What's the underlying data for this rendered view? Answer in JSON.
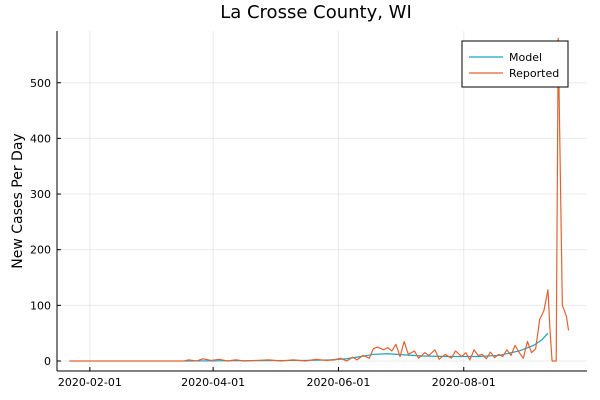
{
  "chart_data": {
    "type": "line",
    "title": "La Crosse County, WI",
    "xlabel": "",
    "ylabel": "New Cases Per Day",
    "x_axis_type": "date",
    "xlim": [
      "2020-01-16",
      "2020-09-30"
    ],
    "ylim": [
      -18,
      593
    ],
    "x_ticks": [
      "2020-02-01",
      "2020-04-01",
      "2020-06-01",
      "2020-08-01"
    ],
    "y_ticks": [
      0,
      100,
      200,
      300,
      400,
      500
    ],
    "grid": true,
    "legend": "top-right",
    "series": [
      {
        "name": "Model",
        "color": "#1aa3c4",
        "points": [
          [
            "2020-03-18",
            0
          ],
          [
            "2020-04-15",
            0.5
          ],
          [
            "2020-05-15",
            1
          ],
          [
            "2020-05-28",
            2
          ],
          [
            "2020-06-05",
            4
          ],
          [
            "2020-06-12",
            8
          ],
          [
            "2020-06-18",
            12
          ],
          [
            "2020-06-25",
            13
          ],
          [
            "2020-07-03",
            11
          ],
          [
            "2020-07-12",
            9
          ],
          [
            "2020-07-25",
            8
          ],
          [
            "2020-08-08",
            8
          ],
          [
            "2020-08-18",
            10
          ],
          [
            "2020-08-28",
            18
          ],
          [
            "2020-09-04",
            28
          ],
          [
            "2020-09-08",
            38
          ],
          [
            "2020-09-11",
            50
          ]
        ]
      },
      {
        "name": "Reported",
        "color": "#e2632f",
        "points": [
          [
            "2020-01-22",
            0
          ],
          [
            "2020-03-18",
            0
          ],
          [
            "2020-03-20",
            2
          ],
          [
            "2020-03-24",
            0
          ],
          [
            "2020-03-27",
            4
          ],
          [
            "2020-03-31",
            1
          ],
          [
            "2020-04-04",
            3
          ],
          [
            "2020-04-08",
            0
          ],
          [
            "2020-04-12",
            2
          ],
          [
            "2020-04-16",
            0
          ],
          [
            "2020-04-22",
            1
          ],
          [
            "2020-04-28",
            2
          ],
          [
            "2020-05-04",
            0
          ],
          [
            "2020-05-10",
            2
          ],
          [
            "2020-05-16",
            0
          ],
          [
            "2020-05-21",
            3
          ],
          [
            "2020-05-26",
            1
          ],
          [
            "2020-05-30",
            2
          ],
          [
            "2020-06-02",
            5
          ],
          [
            "2020-06-05",
            0
          ],
          [
            "2020-06-08",
            7
          ],
          [
            "2020-06-10",
            2
          ],
          [
            "2020-06-13",
            10
          ],
          [
            "2020-06-16",
            5
          ],
          [
            "2020-06-18",
            22
          ],
          [
            "2020-06-20",
            25
          ],
          [
            "2020-06-23",
            20
          ],
          [
            "2020-06-25",
            24
          ],
          [
            "2020-06-27",
            18
          ],
          [
            "2020-06-29",
            30
          ],
          [
            "2020-07-01",
            8
          ],
          [
            "2020-07-03",
            35
          ],
          [
            "2020-07-05",
            12
          ],
          [
            "2020-07-08",
            18
          ],
          [
            "2020-07-10",
            5
          ],
          [
            "2020-07-13",
            15
          ],
          [
            "2020-07-15",
            10
          ],
          [
            "2020-07-18",
            20
          ],
          [
            "2020-07-20",
            3
          ],
          [
            "2020-07-23",
            12
          ],
          [
            "2020-07-26",
            5
          ],
          [
            "2020-07-28",
            18
          ],
          [
            "2020-07-31",
            8
          ],
          [
            "2020-08-02",
            15
          ],
          [
            "2020-08-04",
            2
          ],
          [
            "2020-08-06",
            20
          ],
          [
            "2020-08-08",
            10
          ],
          [
            "2020-08-10",
            12
          ],
          [
            "2020-08-12",
            4
          ],
          [
            "2020-08-14",
            16
          ],
          [
            "2020-08-16",
            6
          ],
          [
            "2020-08-18",
            12
          ],
          [
            "2020-08-20",
            8
          ],
          [
            "2020-08-22",
            20
          ],
          [
            "2020-08-24",
            10
          ],
          [
            "2020-08-26",
            28
          ],
          [
            "2020-08-28",
            15
          ],
          [
            "2020-08-30",
            5
          ],
          [
            "2020-09-01",
            35
          ],
          [
            "2020-09-03",
            15
          ],
          [
            "2020-09-05",
            22
          ],
          [
            "2020-09-07",
            75
          ],
          [
            "2020-09-09",
            90
          ],
          [
            "2020-09-11",
            128
          ],
          [
            "2020-09-12",
            55
          ],
          [
            "2020-09-13",
            0
          ],
          [
            "2020-09-15",
            0
          ],
          [
            "2020-09-16",
            580
          ],
          [
            "2020-09-18",
            100
          ],
          [
            "2020-09-20",
            80
          ],
          [
            "2020-09-21",
            55
          ]
        ]
      }
    ]
  }
}
